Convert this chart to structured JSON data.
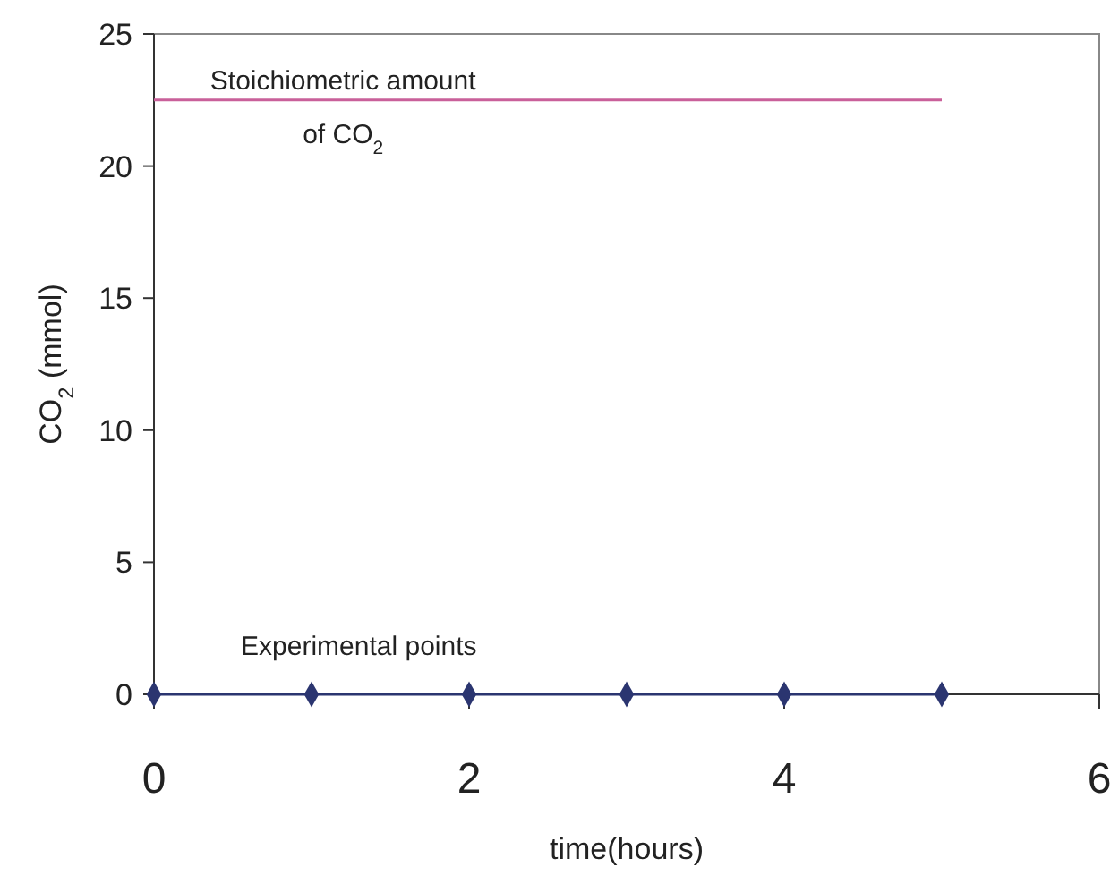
{
  "chart_data": {
    "type": "line",
    "xlabel": "time(hours)",
    "ylabel": "CO$_{2}$ (mmol)",
    "xlim": [
      0,
      6
    ],
    "xticks": [
      0,
      2,
      4,
      6
    ],
    "ylim": [
      0,
      25
    ],
    "yticks": [
      0,
      5,
      10,
      15,
      20,
      25
    ],
    "series": [
      {
        "color": "#2b3570",
        "x": [
          0,
          1,
          2,
          3,
          4,
          5
        ],
        "values": [
          0,
          0,
          0,
          0,
          0,
          0
        ],
        "marker": "diamond"
      },
      {
        "color": "#c9609a",
        "x": [
          0,
          5
        ],
        "values": [
          22.5,
          22.5
        ],
        "marker": "none"
      }
    ],
    "annotations": [
      {
        "text": "Stoichiometric amount of CO$_{2}$",
        "x": 1.2,
        "y": 22.5
      },
      {
        "text": "Experimental points",
        "x": 1.3,
        "y": 0
      }
    ],
    "grid": false
  }
}
